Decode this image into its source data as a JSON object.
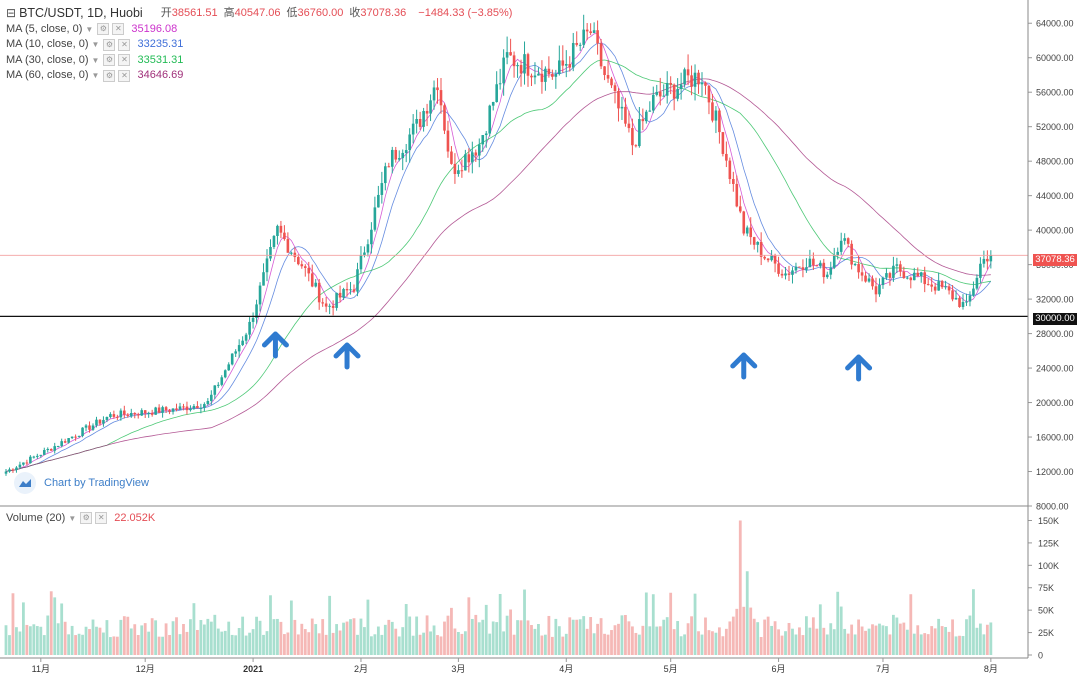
{
  "header": {
    "symbol_icon": "chart-icon",
    "title": "BTC/USDT, 1D, Huobi",
    "ohlc": [
      {
        "label": "开",
        "value": "38561.51"
      },
      {
        "label": "高",
        "value": "40547.06"
      },
      {
        "label": "低",
        "value": "36760.00"
      },
      {
        "label": "收",
        "value": "37078.36"
      }
    ],
    "change": "−1484.33 (−3.85%)"
  },
  "indicators": [
    {
      "label": "MA (5, close, 0)",
      "value": "35196.08",
      "color": "#cc33cc"
    },
    {
      "label": "MA (10, close, 0)",
      "value": "33235.31",
      "color": "#3f6fd8"
    },
    {
      "label": "MA (30, close, 0)",
      "value": "33531.31",
      "color": "#22bb55"
    },
    {
      "label": "MA (60, close, 0)",
      "value": "34646.69",
      "color": "#a0307a"
    }
  ],
  "volume": {
    "label": "Volume (20)",
    "value": "22.052K"
  },
  "branding": {
    "text": "Chart by TradingView",
    "icon": "tradingview-cloud-icon"
  },
  "price_tags": {
    "last": "37078.36",
    "line": "30000.00"
  },
  "colors": {
    "up": "#26a69a",
    "down": "#ef5350",
    "up_vol": "#a8dfcf",
    "down_vol": "#f5b8b6",
    "arrow": "#2f7bd0"
  },
  "chart_data": [
    {
      "type": "candlestick",
      "title": "BTC/USDT, 1D, Huobi",
      "ylim": [
        8000,
        66000
      ],
      "y_ticks": [
        "64000.00",
        "60000.00",
        "56000.00",
        "52000.00",
        "48000.00",
        "44000.00",
        "40000.00",
        "36000.00",
        "32000.00",
        "28000.00",
        "24000.00",
        "20000.00",
        "16000.00",
        "12000.00",
        "8000.00"
      ],
      "x_ticks": [
        "11月",
        "12月",
        "2021",
        "2月",
        "3月",
        "4月",
        "5月",
        "6月",
        "7月",
        "8月"
      ],
      "x_tick_bold": [
        false,
        false,
        true,
        false,
        false,
        false,
        false,
        false,
        false,
        false
      ],
      "approx_close_path": [
        {
          "x": "10月下旬",
          "y": 12000
        },
        {
          "x": "11月上旬",
          "y": 14500
        },
        {
          "x": "11月下旬",
          "y": 19000
        },
        {
          "x": "12月中旬",
          "y": 19500
        },
        {
          "x": "2021",
          "y": 29000
        },
        {
          "x": "1月上旬",
          "y": 40000
        },
        {
          "x": "1月下旬",
          "y": 31000
        },
        {
          "x": "2月中旬",
          "y": 48000
        },
        {
          "x": "2月下旬",
          "y": 57000
        },
        {
          "x": "3月上旬",
          "y": 47000
        },
        {
          "x": "3月中旬",
          "y": 60000
        },
        {
          "x": "4月中旬",
          "y": 63000
        },
        {
          "x": "4月下旬",
          "y": 50000
        },
        {
          "x": "5月上旬",
          "y": 58000
        },
        {
          "x": "5月中旬",
          "y": 37000
        },
        {
          "x": "6月中旬",
          "y": 40000
        },
        {
          "x": "6月下旬",
          "y": 33000
        },
        {
          "x": "7月中旬",
          "y": 30500
        },
        {
          "x": "7月下旬",
          "y": 37078
        }
      ],
      "horizontal_line": 30000,
      "last_price_line": 37078.36,
      "moving_averages": [
        "MA (5, close, 0)",
        "MA (10, close, 0)",
        "MA (30, close, 0)",
        "MA (60, close, 0)"
      ],
      "annotations": {
        "shape": "up-arrow",
        "approx_dates": [
          "1月初",
          "1月下旬",
          "5月中旬",
          "6月下旬"
        ]
      }
    },
    {
      "type": "bar",
      "title": "Volume (20)",
      "ylim": [
        0,
        155000
      ],
      "y_ticks": [
        "150K",
        "125K",
        "100K",
        "75K",
        "50K",
        "25K",
        "0"
      ],
      "peak_volume_approx": 150000
    }
  ]
}
